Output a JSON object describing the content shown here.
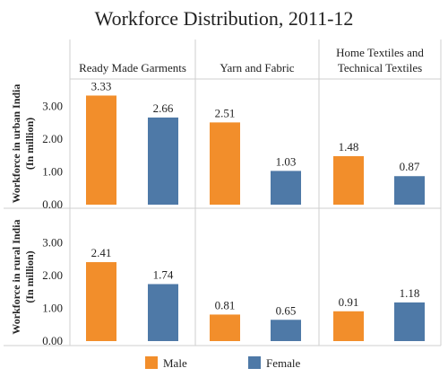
{
  "chart_data": {
    "type": "bar",
    "title": "Workforce Distribution, 2011-12",
    "panel_headers": [
      [
        "Ready Made Garments"
      ],
      [
        "Yarn and Fabric"
      ],
      [
        "Home Textiles and",
        "Technical Textiles"
      ]
    ],
    "categories": [
      "Ready Made Garments",
      "Yarn and Fabric",
      "Home Textiles and Technical Textiles"
    ],
    "series_names": [
      "Male",
      "Female"
    ],
    "colors": {
      "Male": "#F28E2B",
      "Female": "#4E79A7"
    },
    "rows": [
      {
        "label_lines": [
          "Workforce in urban India",
          "(In million)"
        ],
        "yticks": [
          "0.00",
          "1.00",
          "2.00",
          "3.00"
        ],
        "ylim": [
          0,
          3.6
        ],
        "values": {
          "Male": [
            3.33,
            2.51,
            1.48
          ],
          "Female": [
            2.66,
            1.03,
            0.87
          ]
        },
        "value_labels": {
          "Male": [
            "3.33",
            "2.51",
            "1.48"
          ],
          "Female": [
            "2.66",
            "1.03",
            "0.87"
          ]
        }
      },
      {
        "label_lines": [
          "Workforce in rural India",
          "(In million)"
        ],
        "yticks": [
          "0.00",
          "1.00",
          "2.00",
          "3.00"
        ],
        "ylim": [
          0,
          3.6
        ],
        "values": {
          "Male": [
            2.41,
            0.81,
            0.91
          ],
          "Female": [
            1.74,
            0.65,
            1.18
          ]
        },
        "value_labels": {
          "Male": [
            "2.41",
            "0.81",
            "0.91"
          ],
          "Female": [
            "1.74",
            "0.65",
            "1.18"
          ]
        }
      }
    ],
    "legend": [
      "Male",
      "Female"
    ],
    "grid": false
  }
}
